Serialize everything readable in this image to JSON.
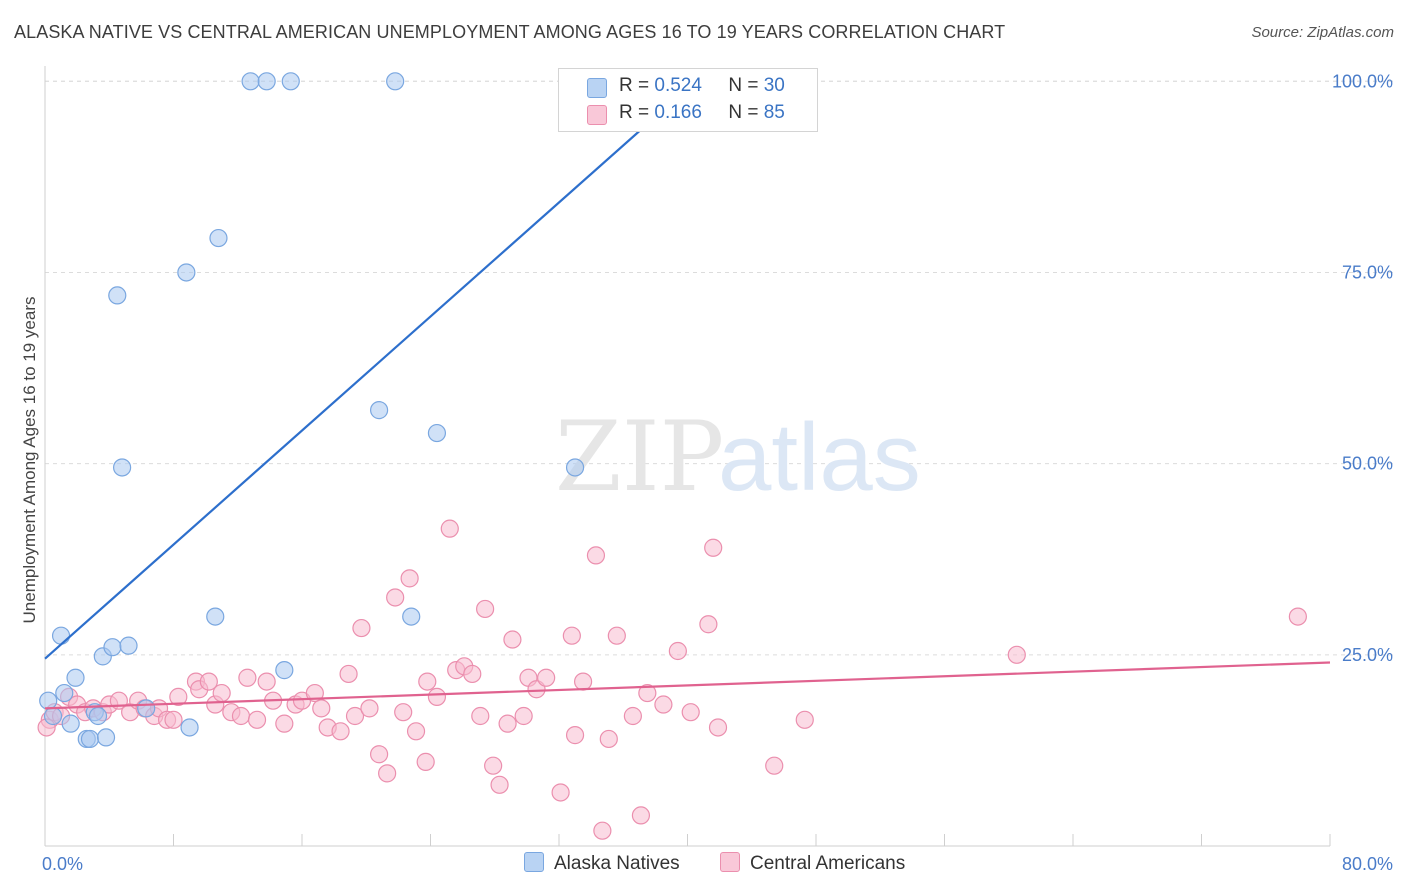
{
  "title": "ALASKA NATIVE VS CENTRAL AMERICAN UNEMPLOYMENT AMONG AGES 16 TO 19 YEARS CORRELATION CHART",
  "source": "Source: ZipAtlas.com",
  "watermark": {
    "zip": "ZIP",
    "atlas": "atlas"
  },
  "colors": {
    "blue_fill": "#a9c8f0",
    "blue_stroke": "#7aa7e0",
    "blue_line": "#2d6fcc",
    "pink_fill": "#f7bcd0",
    "pink_stroke": "#eb8fae",
    "pink_line": "#e0628f",
    "grid": "#dcdcdc",
    "tick": "#4a7cc9"
  },
  "legend": {
    "rows": [
      {
        "r_label": "R =",
        "r_value": "0.524",
        "n_label": "N =",
        "n_value": "30"
      },
      {
        "r_label": "R =",
        "r_value": "0.166",
        "n_label": "N =",
        "n_value": "85"
      }
    ]
  },
  "bottom_legend": [
    "Alaska Natives",
    "Central Americans"
  ],
  "chart_data": {
    "type": "scatter",
    "title": "ALASKA NATIVE VS CENTRAL AMERICAN UNEMPLOYMENT AMONG AGES 16 TO 19 YEARS CORRELATION CHART",
    "xlabel": "",
    "ylabel": "Unemployment Among Ages 16 to 19 years",
    "xlim": [
      0,
      80
    ],
    "ylim": [
      0,
      102
    ],
    "x_tick_labels": [
      "0.0%",
      "80.0%"
    ],
    "y_ticks": [
      25,
      50,
      75,
      100
    ],
    "y_tick_labels": [
      "25.0%",
      "50.0%",
      "75.0%",
      "100.0%"
    ],
    "grid": true,
    "legend_position": "top-center",
    "series": [
      {
        "name": "Alaska Natives",
        "r": 0.524,
        "n": 30,
        "trend": {
          "x": [
            0,
            40.5
          ],
          "y": [
            24.5,
            100
          ]
        },
        "points": [
          [
            0.2,
            19.0
          ],
          [
            0.5,
            17.0
          ],
          [
            1.0,
            27.5
          ],
          [
            1.2,
            20.0
          ],
          [
            1.6,
            16.0
          ],
          [
            1.9,
            22.0
          ],
          [
            2.6,
            14.0
          ],
          [
            2.8,
            14.0
          ],
          [
            3.1,
            17.5
          ],
          [
            3.3,
            17.0
          ],
          [
            3.6,
            24.8
          ],
          [
            3.8,
            14.2
          ],
          [
            4.2,
            26.0
          ],
          [
            4.5,
            72.0
          ],
          [
            4.8,
            49.5
          ],
          [
            5.2,
            26.2
          ],
          [
            6.3,
            18.0
          ],
          [
            8.8,
            75.0
          ],
          [
            9.0,
            15.5
          ],
          [
            10.6,
            30.0
          ],
          [
            10.8,
            79.5
          ],
          [
            12.8,
            100
          ],
          [
            13.8,
            100
          ],
          [
            14.9,
            23.0
          ],
          [
            15.3,
            100
          ],
          [
            20.8,
            57.0
          ],
          [
            21.8,
            100
          ],
          [
            22.8,
            30.0
          ],
          [
            24.4,
            54.0
          ],
          [
            33.0,
            49.5
          ]
        ]
      },
      {
        "name": "Central Americans",
        "r": 0.166,
        "n": 85,
        "trend": {
          "x": [
            0,
            80
          ],
          "y": [
            18.0,
            24.0
          ]
        },
        "points": [
          [
            0.3,
            16.5
          ],
          [
            0.6,
            17.5
          ],
          [
            1.0,
            17.0
          ],
          [
            1.5,
            19.5
          ],
          [
            2.0,
            18.5
          ],
          [
            2.5,
            17.5
          ],
          [
            3.0,
            18.0
          ],
          [
            3.6,
            17.5
          ],
          [
            4.0,
            18.5
          ],
          [
            4.6,
            19.0
          ],
          [
            5.3,
            17.5
          ],
          [
            5.8,
            19.0
          ],
          [
            6.2,
            18.0
          ],
          [
            6.8,
            17.0
          ],
          [
            7.1,
            18.0
          ],
          [
            7.6,
            16.5
          ],
          [
            8.0,
            16.5
          ],
          [
            8.3,
            19.5
          ],
          [
            9.4,
            21.5
          ],
          [
            9.6,
            20.5
          ],
          [
            10.2,
            21.5
          ],
          [
            10.6,
            18.5
          ],
          [
            11.0,
            20.0
          ],
          [
            11.6,
            17.5
          ],
          [
            12.2,
            17.0
          ],
          [
            12.6,
            22.0
          ],
          [
            13.2,
            16.5
          ],
          [
            13.8,
            21.5
          ],
          [
            14.2,
            19.0
          ],
          [
            14.9,
            16.0
          ],
          [
            15.6,
            18.5
          ],
          [
            16.0,
            19.0
          ],
          [
            16.8,
            20.0
          ],
          [
            17.2,
            18.0
          ],
          [
            17.6,
            15.5
          ],
          [
            18.4,
            15.0
          ],
          [
            18.9,
            22.5
          ],
          [
            19.3,
            17.0
          ],
          [
            19.7,
            28.5
          ],
          [
            20.2,
            18.0
          ],
          [
            20.8,
            12.0
          ],
          [
            21.3,
            9.5
          ],
          [
            21.8,
            32.5
          ],
          [
            22.3,
            17.5
          ],
          [
            22.7,
            35.0
          ],
          [
            23.1,
            15.0
          ],
          [
            23.7,
            11.0
          ],
          [
            23.8,
            21.5
          ],
          [
            24.4,
            19.5
          ],
          [
            25.2,
            41.5
          ],
          [
            25.6,
            23.0
          ],
          [
            26.1,
            23.5
          ],
          [
            26.6,
            22.5
          ],
          [
            27.1,
            17.0
          ],
          [
            27.4,
            31.0
          ],
          [
            27.9,
            10.5
          ],
          [
            28.3,
            8.0
          ],
          [
            28.8,
            16.0
          ],
          [
            29.1,
            27.0
          ],
          [
            29.8,
            17.0
          ],
          [
            30.1,
            22.0
          ],
          [
            30.6,
            20.5
          ],
          [
            31.2,
            22.0
          ],
          [
            32.1,
            7.0
          ],
          [
            32.8,
            27.5
          ],
          [
            33.0,
            14.5
          ],
          [
            33.5,
            21.5
          ],
          [
            34.3,
            38.0
          ],
          [
            34.7,
            2.0
          ],
          [
            35.1,
            14.0
          ],
          [
            35.6,
            27.5
          ],
          [
            36.6,
            17.0
          ],
          [
            37.1,
            4.0
          ],
          [
            37.5,
            20.0
          ],
          [
            38.5,
            18.5
          ],
          [
            39.4,
            25.5
          ],
          [
            40.2,
            17.5
          ],
          [
            41.3,
            29.0
          ],
          [
            41.6,
            39.0
          ],
          [
            41.9,
            15.5
          ],
          [
            45.4,
            10.5
          ],
          [
            47.3,
            16.5
          ],
          [
            60.5,
            25.0
          ],
          [
            78.0,
            30.0
          ],
          [
            0.1,
            15.5
          ]
        ]
      }
    ]
  }
}
